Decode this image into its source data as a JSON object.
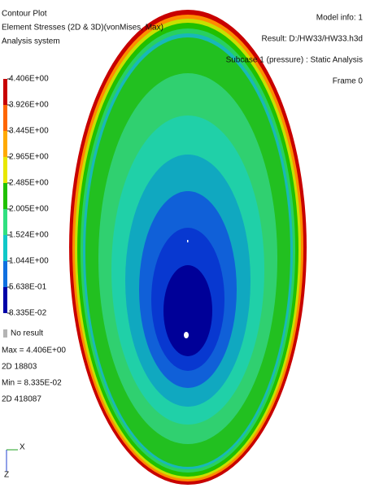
{
  "header": {
    "title": "Contour Plot",
    "result_type": "Element Stresses (2D & 3D)(vonMises, Max)",
    "system": "Analysis system"
  },
  "model_info": [
    "Model info: 1",
    "Result: D:/HW33/HW33.h3d",
    "Subcase 1 (pressure) : Static Analysis",
    "Frame 0"
  ],
  "legend": {
    "labels": [
      "4.406E+00",
      "3.926E+00",
      "3.445E+00",
      "2.965E+00",
      "2.485E+00",
      "2.005E+00",
      "1.524E+00",
      "1.044E+00",
      "5.638E-01",
      "8.335E-02"
    ],
    "colors": [
      "#c80000",
      "#ff6600",
      "#ffaa00",
      "#e8e800",
      "#20c000",
      "#30e080",
      "#10c8c8",
      "#1070e0",
      "#0000a8"
    ],
    "no_result": "No result",
    "no_result_color": "#b4b4b4"
  },
  "stats": [
    "Max = 4.406E+00",
    "2D 18803",
    "Min = 8.335E-02",
    "2D 418087"
  ],
  "axes": {
    "x": "X",
    "z": "Z"
  }
}
